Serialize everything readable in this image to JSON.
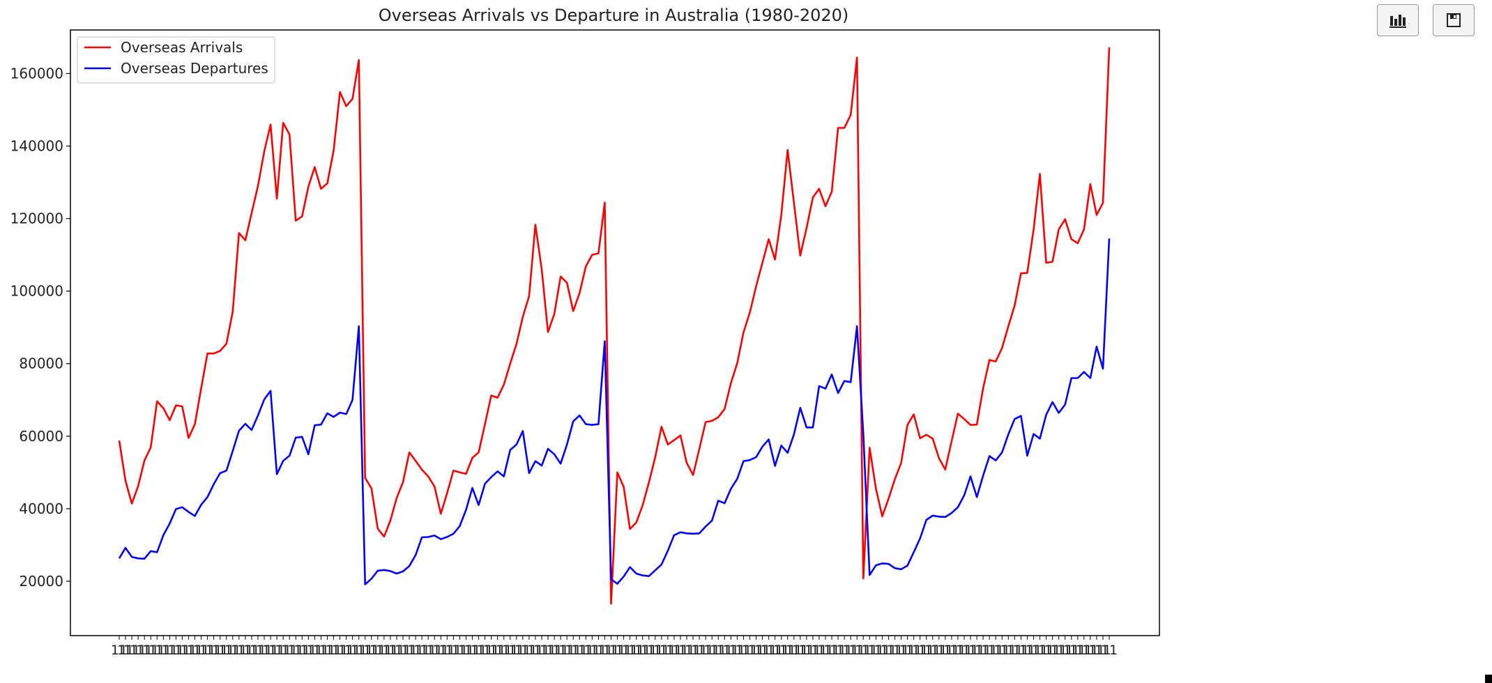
{
  "toolbar": {
    "chart_button_icon": "bar-chart-icon",
    "save_button_icon": "floppy-disk-icon"
  },
  "colors": {
    "arrivals": "#ff0000",
    "departures": "#0000ff",
    "axes": "#000000",
    "background": "#ffffff"
  },
  "chart_data": {
    "type": "line",
    "title": "Overseas Arrivals vs Departure in Australia (1980-2020)",
    "xlabel": "",
    "ylabel": "",
    "ylim": [
      5000,
      172000
    ],
    "yticks": [
      20000,
      40000,
      60000,
      80000,
      100000,
      120000,
      140000,
      160000
    ],
    "yticklabels": [
      "20000",
      "40000",
      "60000",
      "80000",
      "100000",
      "120000",
      "140000",
      "160000"
    ],
    "x_tick_labels_note": "x tick labels are densely overlapping and illegible",
    "grid": false,
    "legend_position": "upper left",
    "series": [
      {
        "name": "Overseas Arrivals",
        "color": "#ff0000",
        "values": [
          58800,
          47700,
          41400,
          46200,
          53300,
          56900,
          69600,
          67700,
          64400,
          68500,
          68200,
          59500,
          63300,
          73300,
          82800,
          82800,
          83500,
          85500,
          94300,
          116000,
          114000,
          121500,
          129000,
          138500,
          145900,
          125500,
          146400,
          143200,
          119400,
          120600,
          128800,
          134200,
          128200,
          129700,
          138700,
          154900,
          151000,
          153000,
          163700,
          48500,
          45600,
          34500,
          32300,
          36700,
          43000,
          47300,
          55500,
          53200,
          50800,
          48900,
          46100,
          38600,
          44300,
          50500,
          50000,
          49600,
          54000,
          55500,
          63300,
          71200,
          70600,
          74200,
          80000,
          85400,
          92900,
          98600,
          118300,
          106000,
          88700,
          93700,
          104000,
          102300,
          94500,
          99500,
          106800,
          110000,
          110400,
          124400,
          13800,
          50000,
          46000,
          34400,
          36200,
          40900,
          47200,
          54200,
          62600,
          57700,
          58900,
          60200,
          52600,
          49300,
          56500,
          63900,
          64200,
          65200,
          67500,
          74600,
          80100,
          88600,
          94100,
          101300,
          107800,
          114300,
          108700,
          121100,
          138900,
          124300,
          109800,
          117400,
          125800,
          128200,
          123400,
          127400,
          145000,
          145000,
          148600,
          164400,
          20800,
          56800,
          45500,
          37900,
          42700,
          48100,
          52600,
          63100,
          66000,
          59400,
          60400,
          59300,
          53900,
          50800,
          58600,
          66200,
          64700,
          63100,
          63200,
          73200,
          81000,
          80600,
          84300,
          90300,
          96000,
          104900,
          105000,
          116900,
          132300,
          107800,
          108100,
          117000,
          119800,
          114300,
          113200,
          117000,
          129500,
          121000,
          124300,
          167200
        ]
      },
      {
        "name": "Overseas Departures",
        "color": "#0000ff",
        "values": [
          26300,
          29200,
          26700,
          26300,
          26200,
          28300,
          28000,
          32700,
          35900,
          39900,
          40400,
          39100,
          38000,
          41100,
          43200,
          46800,
          49800,
          50500,
          55900,
          61500,
          63400,
          61700,
          65700,
          70100,
          72500,
          49500,
          53200,
          54600,
          59600,
          59800,
          55000,
          63000,
          63200,
          66300,
          65300,
          66500,
          66100,
          70000,
          90300,
          19100,
          20700,
          22900,
          23100,
          22800,
          22100,
          22700,
          24200,
          27200,
          32100,
          32200,
          32600,
          31600,
          32200,
          33100,
          35200,
          39700,
          45700,
          41000,
          46900,
          48700,
          50300,
          48900,
          56200,
          57700,
          61400,
          49800,
          53100,
          51900,
          56500,
          55000,
          52400,
          57700,
          64100,
          65700,
          63300,
          63100,
          63300,
          86200,
          20500,
          19300,
          21300,
          23900,
          22100,
          21600,
          21400,
          23000,
          24600,
          28400,
          32700,
          33500,
          33200,
          33100,
          33200,
          35100,
          36700,
          42200,
          41500,
          45500,
          48200,
          53100,
          53400,
          54200,
          57100,
          59100,
          51800,
          57400,
          55400,
          60500,
          67800,
          62400,
          62400,
          73800,
          73100,
          77000,
          71900,
          75200,
          74900,
          90300,
          60500,
          21700,
          24400,
          24900,
          24800,
          23600,
          23300,
          24300,
          28000,
          31800,
          36900,
          38100,
          37800,
          37700,
          38800,
          40400,
          43700,
          48900,
          43200,
          49100,
          54500,
          53300,
          55500,
          60500,
          64700,
          65600,
          54600,
          60600,
          59300,
          65900,
          69400,
          66400,
          68700,
          76000,
          76000,
          77700,
          76000,
          84700,
          78600,
          114500
        ]
      }
    ]
  }
}
